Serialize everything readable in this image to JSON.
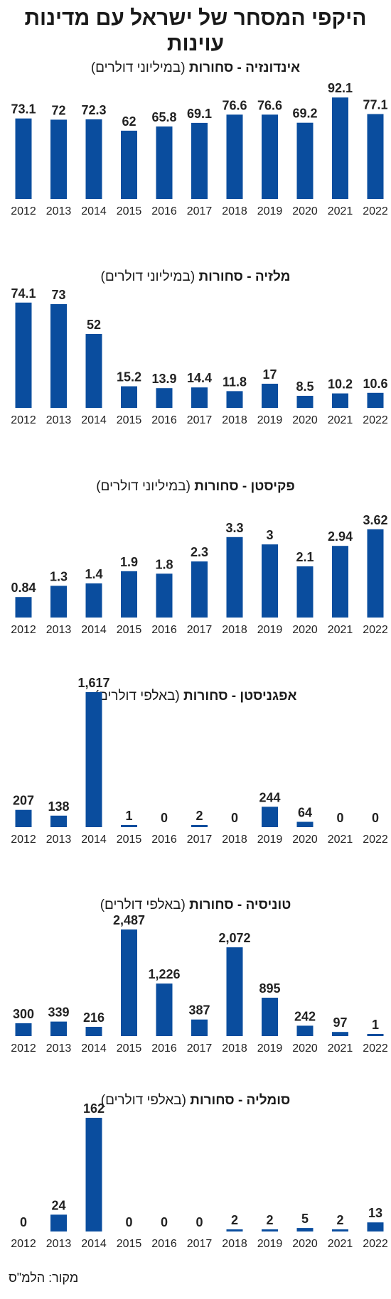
{
  "title": "היקפי המסחר של ישראל עם מדינות עוינות",
  "source": "מקור: הלמ\"ס",
  "colors": {
    "bar": "#0a4d9e"
  },
  "chart_data": [
    {
      "type": "bar",
      "title_bold": "אינדונזיה - סחורות",
      "title_unit": "(במיליוני דולרים)",
      "categories": [
        "2012",
        "2013",
        "2014",
        "2015",
        "2016",
        "2017",
        "2018",
        "2019",
        "2020",
        "2021",
        "2022"
      ],
      "values": [
        73.1,
        72,
        72.3,
        62,
        65.8,
        69.1,
        76.6,
        76.6,
        69.2,
        92.1,
        77.1
      ],
      "labels": [
        "73.1",
        "72",
        "72.3",
        "62",
        "65.8",
        "69.1",
        "76.6",
        "76.6",
        "69.2",
        "92.1",
        "77.1"
      ]
    },
    {
      "type": "bar",
      "title_bold": "מלזיה - סחורות",
      "title_unit": "(במיליוני דולרים)",
      "categories": [
        "2012",
        "2013",
        "2014",
        "2015",
        "2016",
        "2017",
        "2018",
        "2019",
        "2020",
        "2021",
        "2022"
      ],
      "values": [
        74.1,
        73,
        52,
        15.2,
        13.9,
        14.4,
        11.8,
        17,
        8.5,
        10.2,
        10.6
      ],
      "labels": [
        "74.1",
        "73",
        "52",
        "15.2",
        "13.9",
        "14.4",
        "11.8",
        "17",
        "8.5",
        "10.2",
        "10.6"
      ]
    },
    {
      "type": "bar",
      "title_bold": "פקיסטן - סחורות",
      "title_unit": "(במיליוני דולרים)",
      "categories": [
        "2012",
        "2013",
        "2014",
        "2015",
        "2016",
        "2017",
        "2018",
        "2019",
        "2020",
        "2021",
        "2022"
      ],
      "values": [
        0.84,
        1.3,
        1.4,
        1.9,
        1.8,
        2.3,
        3.3,
        3,
        2.1,
        2.94,
        3.62
      ],
      "labels": [
        "0.84",
        "1.3",
        "1.4",
        "1.9",
        "1.8",
        "2.3",
        "3.3",
        "3",
        "2.1",
        "2.94",
        "3.62"
      ]
    },
    {
      "type": "bar",
      "title_bold": "אפגניסטן - סחורות",
      "title_unit": "(באלפי דולרים)",
      "categories": [
        "2012",
        "2013",
        "2014",
        "2015",
        "2016",
        "2017",
        "2018",
        "2019",
        "2020",
        "2021",
        "2022"
      ],
      "values": [
        207,
        138,
        1617,
        1,
        0,
        2,
        0,
        244,
        64,
        0,
        0
      ],
      "labels": [
        "207",
        "138",
        "1,617",
        "1",
        "0",
        "2",
        "0",
        "244",
        "64",
        "0",
        "0"
      ]
    },
    {
      "type": "bar",
      "title_bold": "טוניסיה - סחורות",
      "title_unit": "(באלפי דולרים)",
      "categories": [
        "2012",
        "2013",
        "2014",
        "2015",
        "2016",
        "2017",
        "2018",
        "2019",
        "2020",
        "2021",
        "2022"
      ],
      "values": [
        300,
        339,
        216,
        2487,
        1226,
        387,
        2072,
        895,
        242,
        97,
        1
      ],
      "labels": [
        "300",
        "339",
        "216",
        "2,487",
        "1,226",
        "387",
        "2,072",
        "895",
        "242",
        "97",
        "1"
      ]
    },
    {
      "type": "bar",
      "title_bold": "סומליה - סחורות",
      "title_unit": "(באלפי דולרים)",
      "categories": [
        "2012",
        "2013",
        "2014",
        "2015",
        "2016",
        "2017",
        "2018",
        "2019",
        "2020",
        "2021",
        "2022"
      ],
      "values": [
        0,
        24,
        162,
        0,
        0,
        0,
        2,
        2,
        5,
        2,
        13
      ],
      "labels": [
        "0",
        "24",
        "162",
        "0",
        "0",
        "0",
        "2",
        "2",
        "5",
        "2",
        "13"
      ]
    }
  ]
}
